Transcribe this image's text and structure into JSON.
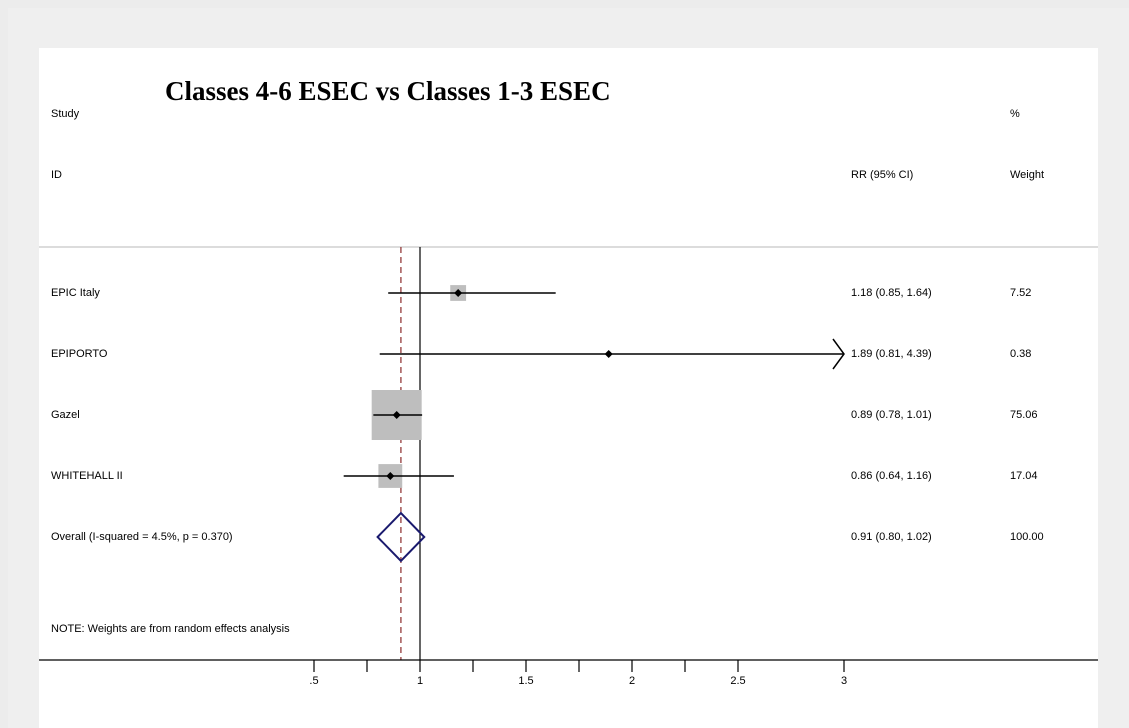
{
  "chart_data": {
    "type": "forest",
    "title": "Classes 4-6 ESEC vs Classes 1-3 ESEC",
    "headers": {
      "study_line1": "Study",
      "study_line2": "ID",
      "estimate": "RR (95% CI)",
      "weight_line1": "%",
      "weight_line2": "Weight"
    },
    "studies": [
      {
        "id": "EPIC Italy",
        "rr": 1.18,
        "lo": 0.85,
        "hi": 1.64,
        "label": "1.18 (0.85, 1.64)",
        "weight": 7.52,
        "weight_label": "7.52"
      },
      {
        "id": "EPIPORTO",
        "rr": 1.89,
        "lo": 0.81,
        "hi": 4.39,
        "label": "1.89 (0.81, 4.39)",
        "weight": 0.38,
        "weight_label": "0.38",
        "clipped_hi": true
      },
      {
        "id": "Gazel",
        "rr": 0.89,
        "lo": 0.78,
        "hi": 1.01,
        "label": "0.89 (0.78, 1.01)",
        "weight": 75.06,
        "weight_label": "75.06"
      },
      {
        "id": "WHITEHALL II",
        "rr": 0.86,
        "lo": 0.64,
        "hi": 1.16,
        "label": "0.86 (0.64, 1.16)",
        "weight": 17.04,
        "weight_label": "17.04"
      }
    ],
    "overall": {
      "id": "Overall  (I-squared = 4.5%, p = 0.370)",
      "rr": 0.91,
      "lo": 0.8,
      "hi": 1.02,
      "label": "0.91 (0.80, 1.02)",
      "weight_label": "100.00"
    },
    "note": "NOTE: Weights are from random effects analysis",
    "null_line": 1,
    "xlim": [
      0.5,
      3
    ],
    "x_ticks": [
      0.5,
      0.75,
      1,
      1.25,
      1.5,
      1.75,
      2,
      2.25,
      2.5,
      3
    ],
    "x_tick_labels": [
      {
        "v": 0.5,
        "t": ".5"
      },
      {
        "v": 1,
        "t": "1"
      },
      {
        "v": 1.5,
        "t": "1.5"
      },
      {
        "v": 2,
        "t": "2"
      },
      {
        "v": 2.5,
        "t": "2.5"
      },
      {
        "v": 3,
        "t": "3"
      }
    ],
    "colors": {
      "box": "#bebebe",
      "diamond": "#1a1a6e",
      "overall_line": "#8b2a2a",
      "plot_bg": "#ffffff",
      "frame_bg": "#efefef"
    }
  }
}
